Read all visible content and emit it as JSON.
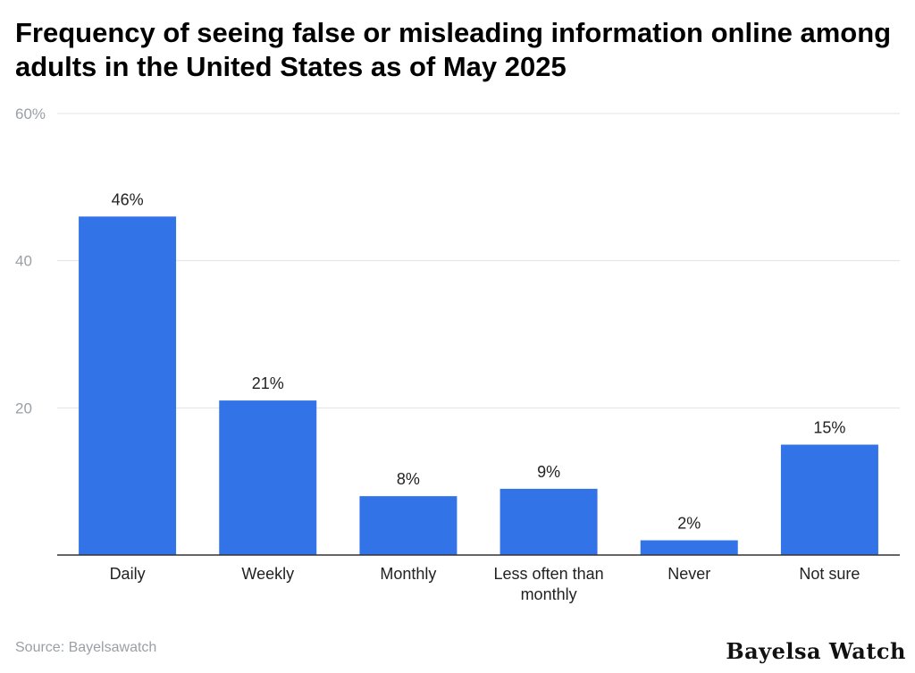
{
  "chart_data": {
    "type": "bar",
    "title": "Frequency of seeing false or misleading information online among adults in the United States as of May 2025",
    "categories": [
      "Daily",
      "Weekly",
      "Monthly",
      "Less often than monthly",
      "Never",
      "Not sure"
    ],
    "values": [
      46,
      21,
      8,
      9,
      2,
      15
    ],
    "data_labels": [
      "46%",
      "21%",
      "8%",
      "9%",
      "2%",
      "15%"
    ],
    "y_ticks": [
      {
        "value": 20,
        "label": "20"
      },
      {
        "value": 40,
        "label": "40"
      },
      {
        "value": 60,
        "label": "60%"
      }
    ],
    "xlabel": "",
    "ylabel": "",
    "ylim": [
      0,
      60
    ],
    "grid": true,
    "legend": "none",
    "bar_color": "#3373e8"
  },
  "source": "Source: Bayelsawatch",
  "brand": "Bayelsa Watch"
}
